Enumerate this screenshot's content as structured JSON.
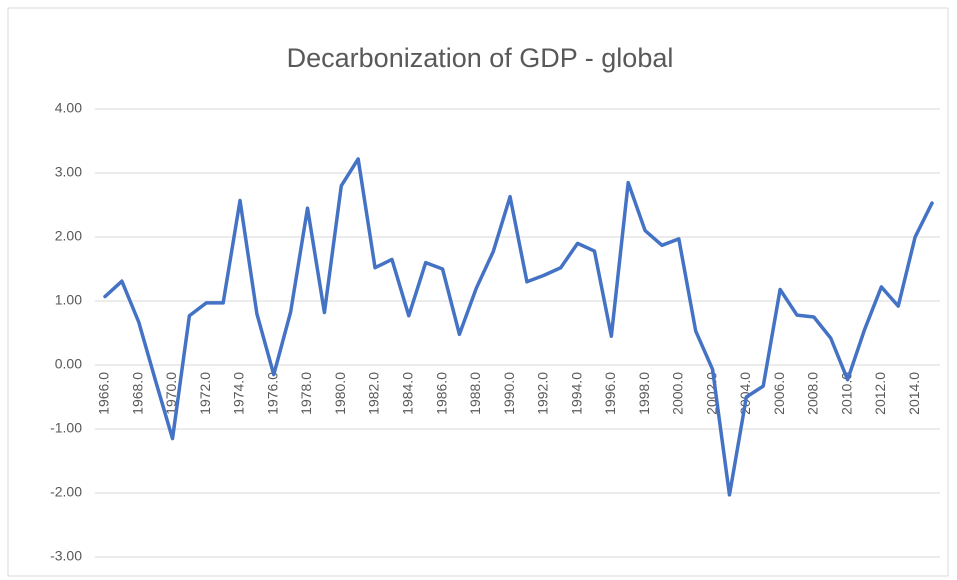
{
  "chart_data": {
    "type": "line",
    "title": "Decarbonization of GDP - global",
    "categories": [
      "1966.0",
      null,
      "1968.0",
      null,
      "1970.0",
      null,
      "1972.0",
      null,
      "1974.0",
      null,
      "1976.0",
      null,
      "1978.0",
      null,
      "1980.0",
      null,
      "1982.0",
      null,
      "1984.0",
      null,
      "1986.0",
      null,
      "1988.0",
      null,
      "1990.0",
      null,
      "1992.0",
      null,
      "1994.0",
      null,
      "1996.0",
      null,
      "1998.0",
      null,
      "2000.0",
      null,
      "2002.0",
      null,
      "2004.0",
      null,
      "2006.0",
      null,
      "2008.0",
      null,
      "2010.0",
      null,
      "2012.0",
      null,
      "2014.0",
      null
    ],
    "values": [
      1.07,
      1.31,
      0.67,
      -0.25,
      -1.15,
      0.77,
      0.97,
      0.97,
      2.57,
      0.8,
      -0.15,
      0.83,
      2.45,
      0.82,
      2.8,
      3.22,
      1.52,
      1.65,
      0.77,
      1.6,
      1.5,
      0.48,
      1.2,
      1.77,
      2.63,
      1.3,
      1.4,
      1.52,
      1.9,
      1.78,
      0.45,
      2.85,
      2.1,
      1.87,
      1.97,
      0.53,
      -0.07,
      -2.03,
      -0.5,
      -0.33,
      1.18,
      0.78,
      0.75,
      0.42,
      -0.23,
      0.55,
      1.22,
      0.92,
      2.0,
      2.53
    ],
    "color": "#4472c4",
    "ylim": [
      -3,
      4
    ],
    "yticks": [
      {
        "value": 4,
        "label": "4.00"
      },
      {
        "value": 3,
        "label": "3.00"
      },
      {
        "value": 2,
        "label": "2.00"
      },
      {
        "value": 1,
        "label": "1.00"
      },
      {
        "value": 0,
        "label": "0.00"
      },
      {
        "value": -1,
        "label": "-1.00"
      },
      {
        "value": -2,
        "label": "-2.00"
      },
      {
        "value": -3,
        "label": "-3.00"
      }
    ],
    "grid": true
  }
}
